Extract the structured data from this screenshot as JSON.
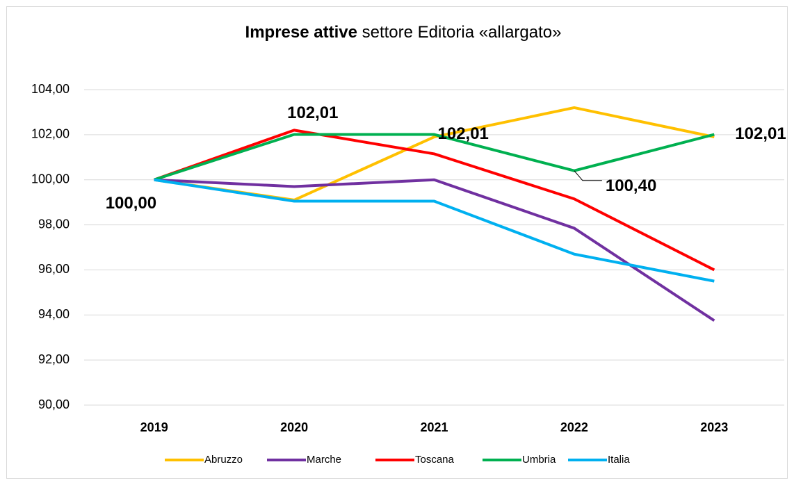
{
  "chart_data": {
    "type": "line",
    "title": [
      "Imprese attive",
      "settore Editoria «allargato»"
    ],
    "categories": [
      "2019",
      "2020",
      "2021",
      "2022",
      "2023"
    ],
    "series": [
      {
        "name": "Abruzzo",
        "color": "#FFC000",
        "values": [
          100,
          99.1,
          101.9,
          103.2,
          101.9
        ]
      },
      {
        "name": "Marche",
        "color": "#7030A0",
        "values": [
          100,
          99.7,
          100.0,
          97.85,
          93.75
        ]
      },
      {
        "name": "Toscana",
        "color": "#FF0000",
        "values": [
          100,
          102.2,
          101.15,
          99.15,
          96.0
        ]
      },
      {
        "name": "Umbria",
        "color": "#00B050",
        "values": [
          100,
          102.01,
          102.01,
          100.4,
          102.01
        ],
        "value_labels": [
          "100,00",
          "102,01",
          "102,01",
          "100,40",
          "102,01"
        ]
      },
      {
        "name": "Italia",
        "color": "#00B0F0",
        "values": [
          100,
          99.05,
          99.05,
          96.7,
          95.5
        ]
      }
    ],
    "ylim": [
      90,
      104
    ],
    "yticks": [
      {
        "value": 90,
        "label": "90,00"
      },
      {
        "value": 92,
        "label": "92,00"
      },
      {
        "value": 94,
        "label": "94,00"
      },
      {
        "value": 96,
        "label": "96,00"
      },
      {
        "value": 98,
        "label": "98,00"
      },
      {
        "value": 100,
        "label": "100,00"
      },
      {
        "value": 102,
        "label": "102,00"
      },
      {
        "value": 104,
        "label": "104,00"
      }
    ],
    "grid": true,
    "legend": "bottom"
  }
}
